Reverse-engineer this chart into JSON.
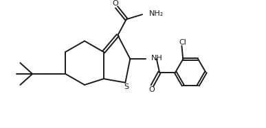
{
  "bg_color": "#ffffff",
  "line_color": "#1a1a1a",
  "line_width": 1.4,
  "figsize": [
    3.87,
    1.87
  ],
  "dpi": 100,
  "xlim": [
    0,
    10
  ],
  "ylim": [
    0,
    5
  ]
}
